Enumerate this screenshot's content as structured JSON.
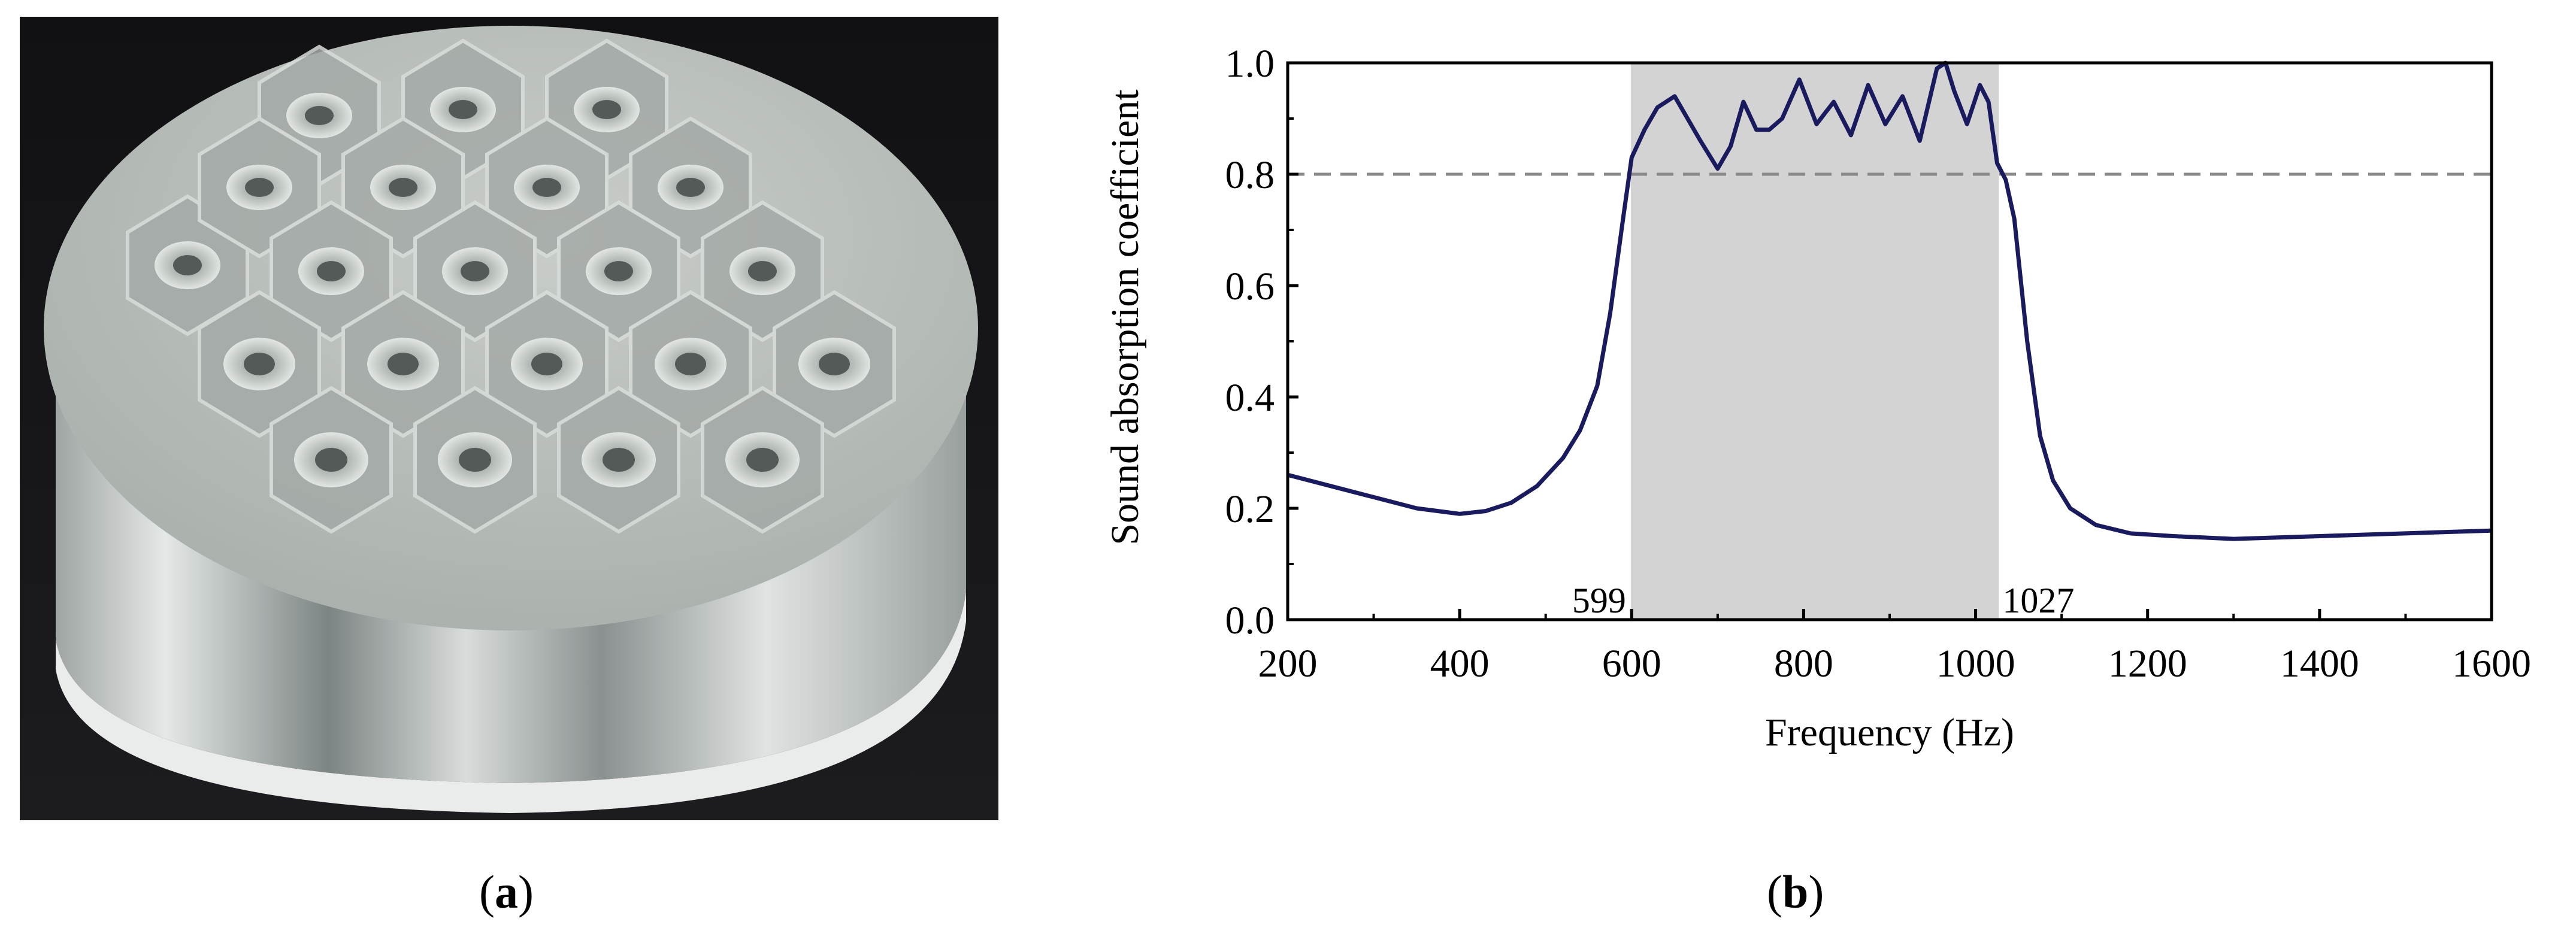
{
  "figure": {
    "panel_a": {
      "caption_letter": "a"
    },
    "panel_b": {
      "caption_letter": "b"
    }
  },
  "chart_data": {
    "type": "line",
    "xlabel": "Frequency (Hz)",
    "ylabel": "Sound absorption coefficient",
    "xlim": [
      200,
      1600
    ],
    "ylim": [
      0.0,
      1.0
    ],
    "xticks": [
      200,
      400,
      600,
      800,
      1000,
      1200,
      1400,
      1600
    ],
    "yticks": [
      "0.0",
      "0.2",
      "0.4",
      "0.6",
      "0.8",
      "1.0"
    ],
    "grid": false,
    "line_color": "#1a1a5e",
    "shaded_band": {
      "x_start": 599,
      "x_end": 1027,
      "color": "#d3d3d3"
    },
    "threshold": {
      "y": 0.8,
      "style": "dashed",
      "color": "#888888"
    },
    "annotations": [
      {
        "text": "599",
        "x": 599
      },
      {
        "text": "1027",
        "x": 1027
      }
    ],
    "series": [
      {
        "x": [
          200,
          250,
          300,
          350,
          400,
          430,
          460,
          490,
          520,
          540,
          560,
          575,
          590,
          600,
          615,
          630,
          650,
          665,
          680,
          700,
          715,
          730,
          745,
          760,
          775,
          795,
          815,
          835,
          855,
          875,
          895,
          915,
          935,
          955,
          965,
          975,
          990,
          1005,
          1015,
          1025,
          1035,
          1045,
          1060,
          1075,
          1090,
          1110,
          1140,
          1180,
          1230,
          1300,
          1400,
          1500,
          1600
        ],
        "y": [
          0.26,
          0.24,
          0.22,
          0.2,
          0.19,
          0.195,
          0.21,
          0.24,
          0.29,
          0.34,
          0.42,
          0.55,
          0.72,
          0.83,
          0.88,
          0.92,
          0.94,
          0.9,
          0.86,
          0.81,
          0.85,
          0.93,
          0.88,
          0.88,
          0.9,
          0.97,
          0.89,
          0.93,
          0.87,
          0.96,
          0.89,
          0.94,
          0.86,
          0.99,
          1.0,
          0.95,
          0.89,
          0.96,
          0.93,
          0.82,
          0.79,
          0.72,
          0.5,
          0.33,
          0.25,
          0.2,
          0.17,
          0.155,
          0.15,
          0.145,
          0.15,
          0.155,
          0.16
        ]
      }
    ]
  }
}
